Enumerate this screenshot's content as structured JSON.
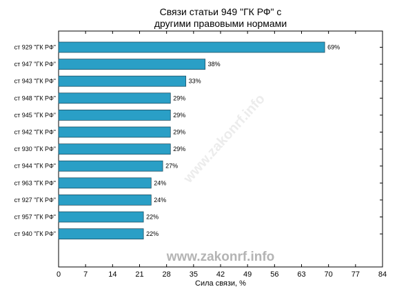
{
  "chart_data": {
    "type": "bar",
    "orientation": "horizontal",
    "title_lines": [
      "Связи статьи 949 \"ГК РФ\" с",
      "другими правовыми нормами"
    ],
    "xlabel": "Сила связи, %",
    "ylabel": "",
    "xlim": [
      0,
      84
    ],
    "xticks": [
      0,
      7,
      14,
      21,
      28,
      35,
      42,
      49,
      56,
      63,
      70,
      77,
      84
    ],
    "grid": false,
    "categories": [
      "ст 929 \"ГК РФ\"",
      "ст 947 \"ГК РФ\"",
      "ст 943 \"ГК РФ\"",
      "ст 948 \"ГК РФ\"",
      "ст 945 \"ГК РФ\"",
      "ст 942 \"ГК РФ\"",
      "ст 930 \"ГК РФ\"",
      "ст 944 \"ГК РФ\"",
      "ст 963 \"ГК РФ\"",
      "ст 927 \"ГК РФ\"",
      "ст 957 \"ГК РФ\"",
      "ст 940 \"ГК РФ\""
    ],
    "values": [
      69,
      38,
      33,
      29,
      29,
      29,
      29,
      27,
      24,
      24,
      22,
      22
    ],
    "value_labels": [
      "69%",
      "38%",
      "33%",
      "29%",
      "29%",
      "29%",
      "29%",
      "27%",
      "24%",
      "24%",
      "22%",
      "22%"
    ],
    "bar_color": "#2a9fc6"
  },
  "watermark": "www.zakonrf.info",
  "watermark_diagonal": "www.zakonrf.info"
}
